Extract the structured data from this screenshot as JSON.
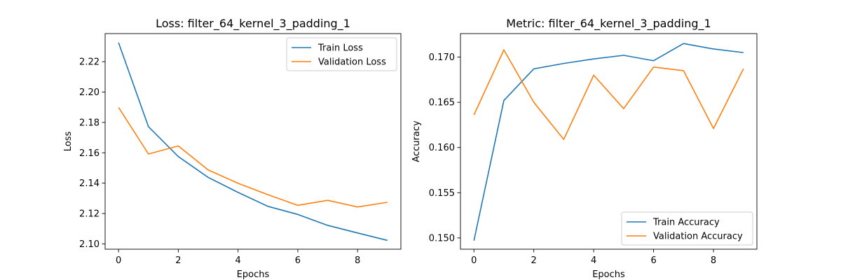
{
  "chart_data": [
    {
      "type": "line",
      "title": "Loss: filter_64_kernel_3_padding_1",
      "xlabel": "Epochs",
      "ylabel": "Loss",
      "x": [
        0,
        1,
        2,
        3,
        4,
        5,
        6,
        7,
        8,
        9
      ],
      "xlim": [
        -0.45,
        9.45
      ],
      "ylim": [
        2.0965,
        2.2385
      ],
      "xticks": [
        0,
        2,
        4,
        6,
        8
      ],
      "yticks": [
        2.1,
        2.12,
        2.14,
        2.16,
        2.18,
        2.2,
        2.22
      ],
      "ytick_labels": [
        "2.10",
        "2.12",
        "2.14",
        "2.16",
        "2.18",
        "2.20",
        "2.22"
      ],
      "grid": false,
      "legend": "upper right",
      "series": [
        {
          "name": "Train Loss",
          "color": "#1f77b4",
          "values": [
            2.2325,
            2.1772,
            2.1575,
            2.1438,
            2.1339,
            2.1247,
            2.1194,
            2.1122,
            2.1072,
            2.1023
          ]
        },
        {
          "name": "Validation Loss",
          "color": "#ff7f0e",
          "values": [
            2.1899,
            2.1592,
            2.1645,
            2.1487,
            2.1399,
            2.1324,
            2.1254,
            2.1287,
            2.1243,
            2.1274
          ]
        }
      ]
    },
    {
      "type": "line",
      "title": "Metric: filter_64_kernel_3_padding_1",
      "xlabel": "Epochs",
      "ylabel": "Accuracy",
      "x": [
        0,
        1,
        2,
        3,
        4,
        5,
        6,
        7,
        8,
        9
      ],
      "xlim": [
        -0.45,
        9.45
      ],
      "ylim": [
        0.14875,
        0.1726
      ],
      "xticks": [
        0,
        2,
        4,
        6,
        8
      ],
      "yticks": [
        0.15,
        0.155,
        0.16,
        0.165,
        0.17
      ],
      "ytick_labels": [
        "0.150",
        "0.155",
        "0.160",
        "0.165",
        "0.170"
      ],
      "grid": false,
      "legend": "lower right",
      "series": [
        {
          "name": "Train Accuracy",
          "color": "#1f77b4",
          "values": [
            0.1497,
            0.1652,
            0.1687,
            0.1693,
            0.1698,
            0.1702,
            0.1696,
            0.1715,
            0.1709,
            0.1705
          ]
        },
        {
          "name": "Validation Accuracy",
          "color": "#ff7f0e",
          "values": [
            0.1636,
            0.1708,
            0.165,
            0.1609,
            0.168,
            0.1643,
            0.1689,
            0.1685,
            0.1621,
            0.1687
          ]
        }
      ]
    }
  ]
}
